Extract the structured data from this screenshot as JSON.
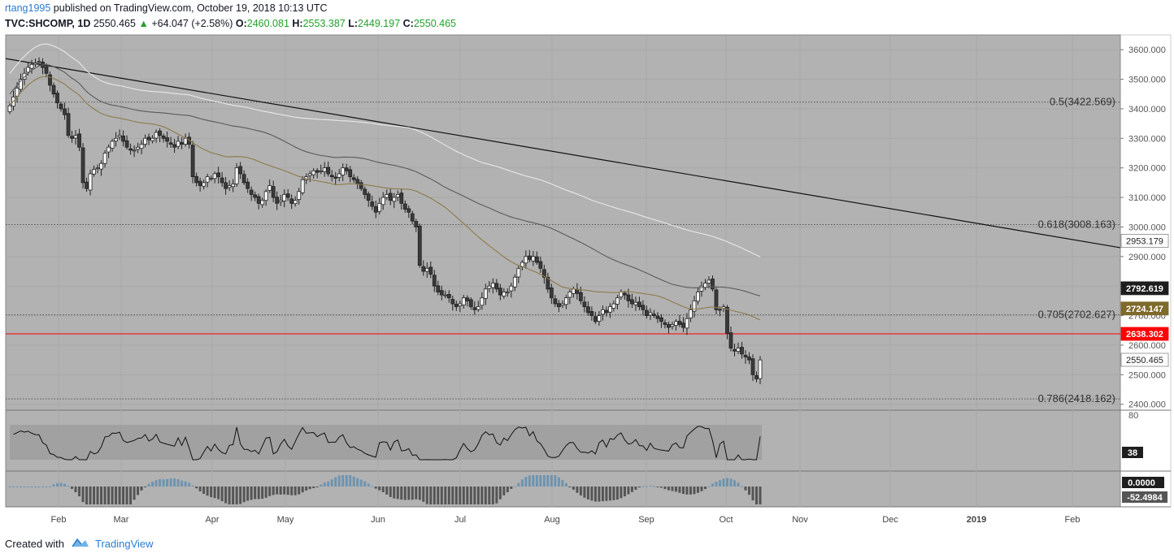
{
  "header": {
    "user": "rtang1995",
    "published": "published on TradingView.com, October 19, 2018 10:13 UTC",
    "symbol": "TVC:SHCOMP, 1D",
    "last": "2550.465",
    "change": "+64.047 (+2.58%)",
    "o_label": "O:",
    "o_val": "2460.081",
    "h_label": "H:",
    "h_val": "2553.387",
    "l_label": "L:",
    "l_val": "2449.197",
    "c_label": "C:",
    "c_val": "2550.465"
  },
  "footer": {
    "created": "Created with",
    "brand": "TradingView"
  },
  "colors": {
    "background": "#b2b2b2",
    "up_candle": "#ffffff",
    "down_candle": "#3a3a3a",
    "support_line": "#ff0000",
    "ma_short": "#8c7a4a",
    "ma_mid": "#5a5a5a",
    "ma_long": "#e8e8e8",
    "price_badge": "#ffffff",
    "short_badge": "#7e6a2a",
    "support_badge": "#ff0000",
    "mid_badge": "#1e1e1e"
  },
  "chart_data": {
    "type": "candlestick",
    "title": "TVC:SHCOMP, 1D",
    "y_range": [
      2380,
      3650
    ],
    "y_ticks": [
      "2400.000",
      "2500.000",
      "2600.000",
      "2700.000",
      "2800.000",
      "2900.000",
      "3000.000",
      "3100.000",
      "3200.000",
      "3300.000",
      "3400.000",
      "3500.000",
      "3600.000"
    ],
    "x_ticks": [
      "Feb",
      "Mar",
      "Apr",
      "May",
      "Jun",
      "Jul",
      "Aug",
      "Sep",
      "Oct",
      "Nov",
      "Dec",
      "2019",
      "Feb"
    ],
    "fib_levels": [
      {
        "label": "0.5(3422.569)",
        "value": 3422.569
      },
      {
        "label": "0.618(3008.163)",
        "value": 3008.163
      },
      {
        "label": "0.705(2702.627)",
        "value": 2702.627
      },
      {
        "label": "0.786(2418.162)",
        "value": 2418.162
      }
    ],
    "support": {
      "value": 2638.302,
      "label": "2638.302"
    },
    "badges": [
      {
        "label": "2953.179",
        "value": 2953.179,
        "kind": "long"
      },
      {
        "label": "2792.619",
        "value": 2792.619,
        "kind": "mid"
      },
      {
        "label": "2724.147",
        "value": 2724.147,
        "kind": "short"
      },
      {
        "label": "2638.302",
        "value": 2638.302,
        "kind": "support"
      },
      {
        "label": "2550.465",
        "value": 2550.465,
        "kind": "price"
      }
    ],
    "trendline": {
      "from": 3570,
      "to": 2930
    },
    "closes": [
      3410,
      3440,
      3470,
      3500,
      3520,
      3540,
      3550,
      3555,
      3560,
      3540,
      3520,
      3480,
      3450,
      3420,
      3400,
      3380,
      3310,
      3300,
      3310,
      3270,
      3150,
      3130,
      3180,
      3195,
      3200,
      3215,
      3250,
      3270,
      3290,
      3300,
      3310,
      3290,
      3270,
      3260,
      3260,
      3270,
      3280,
      3300,
      3295,
      3300,
      3320,
      3310,
      3300,
      3290,
      3280,
      3270,
      3290,
      3280,
      3300,
      3280,
      3170,
      3150,
      3140,
      3150,
      3170,
      3165,
      3180,
      3170,
      3150,
      3130,
      3140,
      3145,
      3200,
      3180,
      3150,
      3130,
      3110,
      3100,
      3080,
      3090,
      3120,
      3140,
      3100,
      3080,
      3090,
      3110,
      3100,
      3080,
      3090,
      3120,
      3160,
      3170,
      3180,
      3190,
      3185,
      3190,
      3200,
      3180,
      3170,
      3165,
      3180,
      3200,
      3190,
      3170,
      3160,
      3145,
      3130,
      3110,
      3090,
      3070,
      3050,
      3080,
      3100,
      3110,
      3090,
      3100,
      3110,
      3080,
      3060,
      3050,
      3020,
      3000,
      2870,
      2850,
      2860,
      2840,
      2800,
      2780,
      2770,
      2770,
      2760,
      2740,
      2730,
      2740,
      2760,
      2750,
      2730,
      2720,
      2730,
      2760,
      2790,
      2800,
      2810,
      2790,
      2770,
      2780,
      2780,
      2800,
      2830,
      2860,
      2880,
      2900,
      2890,
      2900,
      2880,
      2860,
      2830,
      2790,
      2760,
      2740,
      2730,
      2740,
      2760,
      2780,
      2790,
      2775,
      2750,
      2730,
      2710,
      2700,
      2680,
      2700,
      2720,
      2710,
      2730,
      2740,
      2760,
      2780,
      2770,
      2750,
      2740,
      2745,
      2730,
      2720,
      2700,
      2710,
      2700,
      2690,
      2680,
      2670,
      2660,
      2670,
      2680,
      2670,
      2660,
      2690,
      2720,
      2750,
      2780,
      2800,
      2810,
      2820,
      2790,
      2720,
      2720,
      2730,
      2640,
      2590,
      2580,
      2590,
      2570,
      2560,
      2550,
      2500,
      2486,
      2550
    ]
  }
}
